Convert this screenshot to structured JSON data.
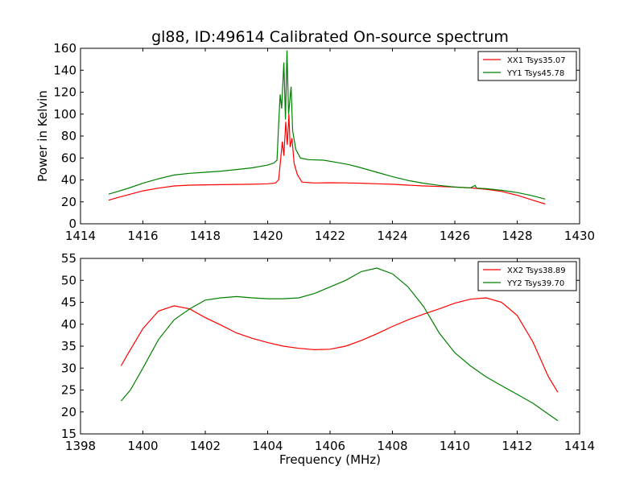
{
  "chart_data": [
    {
      "type": "line",
      "title": "gl88, ID:49614 Calibrated On-source spectrum",
      "xlabel": "",
      "ylabel": "Power in Kelvin",
      "xlim": [
        1414,
        1430
      ],
      "ylim": [
        0,
        160
      ],
      "xticks": [
        1414,
        1416,
        1418,
        1420,
        1422,
        1424,
        1426,
        1428,
        1430
      ],
      "yticks": [
        0,
        20,
        40,
        60,
        80,
        100,
        120,
        140,
        160
      ],
      "legend_position": "top-right",
      "series": [
        {
          "name": "XX1 Tsys35.07",
          "color": "#ff0000",
          "points": [
            [
              1414.9,
              21.5
            ],
            [
              1415.2,
              24
            ],
            [
              1415.6,
              27
            ],
            [
              1416.0,
              30
            ],
            [
              1416.5,
              32.5
            ],
            [
              1417.0,
              34.5
            ],
            [
              1417.5,
              35.2
            ],
            [
              1418.0,
              35.5
            ],
            [
              1418.5,
              35.7
            ],
            [
              1419.0,
              35.9
            ],
            [
              1419.5,
              36.0
            ],
            [
              1420.0,
              36.5
            ],
            [
              1420.25,
              37.2
            ],
            [
              1420.35,
              40
            ],
            [
              1420.42,
              60
            ],
            [
              1420.47,
              75
            ],
            [
              1420.52,
              62
            ],
            [
              1420.58,
              93
            ],
            [
              1420.63,
              72
            ],
            [
              1420.68,
              100
            ],
            [
              1420.72,
              70
            ],
            [
              1420.78,
              78
            ],
            [
              1420.85,
              55
            ],
            [
              1420.95,
              45
            ],
            [
              1421.1,
              38
            ],
            [
              1421.5,
              37.2
            ],
            [
              1422.0,
              37.4
            ],
            [
              1422.5,
              37.3
            ],
            [
              1423.0,
              37
            ],
            [
              1423.5,
              36.5
            ],
            [
              1424.0,
              36
            ],
            [
              1424.5,
              35.2
            ],
            [
              1425.0,
              34.5
            ],
            [
              1425.5,
              34
            ],
            [
              1426.0,
              33.5
            ],
            [
              1426.5,
              32.7
            ],
            [
              1427.0,
              31.5
            ],
            [
              1427.5,
              29.5
            ],
            [
              1428.0,
              26
            ],
            [
              1428.5,
              21.5
            ],
            [
              1428.9,
              18
            ]
          ]
        },
        {
          "name": "YY1 Tsys45.78",
          "color": "#008000",
          "points": [
            [
              1414.9,
              27
            ],
            [
              1415.2,
              29.5
            ],
            [
              1415.6,
              33
            ],
            [
              1416.0,
              37
            ],
            [
              1416.5,
              41
            ],
            [
              1417.0,
              44.5
            ],
            [
              1417.5,
              46
            ],
            [
              1418.0,
              47
            ],
            [
              1418.5,
              48
            ],
            [
              1419.0,
              49.5
            ],
            [
              1419.5,
              51
            ],
            [
              1420.0,
              53.5
            ],
            [
              1420.2,
              55.5
            ],
            [
              1420.3,
              58
            ],
            [
              1420.35,
              90
            ],
            [
              1420.4,
              118
            ],
            [
              1420.45,
              105
            ],
            [
              1420.52,
              147
            ],
            [
              1420.57,
              95
            ],
            [
              1420.62,
              158
            ],
            [
              1420.67,
              100
            ],
            [
              1420.75,
              125
            ],
            [
              1420.8,
              85
            ],
            [
              1420.9,
              68
            ],
            [
              1421.05,
              60
            ],
            [
              1421.3,
              58.5
            ],
            [
              1421.8,
              58
            ],
            [
              1422.2,
              56
            ],
            [
              1422.6,
              54
            ],
            [
              1423.0,
              51
            ],
            [
              1423.5,
              47
            ],
            [
              1424.0,
              43
            ],
            [
              1424.5,
              39.5
            ],
            [
              1425.0,
              37
            ],
            [
              1425.5,
              35
            ],
            [
              1426.0,
              33.5
            ],
            [
              1426.5,
              32.7
            ],
            [
              1426.65,
              35
            ],
            [
              1426.7,
              32.5
            ],
            [
              1427.0,
              32
            ],
            [
              1427.5,
              30.5
            ],
            [
              1428.0,
              28.5
            ],
            [
              1428.5,
              25.5
            ],
            [
              1428.9,
              22.5
            ]
          ]
        }
      ]
    },
    {
      "type": "line",
      "title": "",
      "xlabel": "Frequency (MHz)",
      "ylabel": "",
      "xlim": [
        1398,
        1414
      ],
      "ylim": [
        15,
        55
      ],
      "xticks": [
        1398,
        1400,
        1402,
        1404,
        1406,
        1408,
        1410,
        1412,
        1414
      ],
      "yticks": [
        15,
        20,
        25,
        30,
        35,
        40,
        45,
        50,
        55
      ],
      "legend_position": "top-right",
      "series": [
        {
          "name": "XX2 Tsys38.89",
          "color": "#ff0000",
          "points": [
            [
              1399.3,
              30.5
            ],
            [
              1399.5,
              33
            ],
            [
              1400.0,
              39
            ],
            [
              1400.5,
              43
            ],
            [
              1401.0,
              44.2
            ],
            [
              1401.5,
              43.5
            ],
            [
              1402.0,
              41.5
            ],
            [
              1402.5,
              39.8
            ],
            [
              1403.0,
              38
            ],
            [
              1403.5,
              36.8
            ],
            [
              1404.0,
              35.8
            ],
            [
              1404.5,
              35
            ],
            [
              1405.0,
              34.5
            ],
            [
              1405.5,
              34.2
            ],
            [
              1406.0,
              34.3
            ],
            [
              1406.5,
              35
            ],
            [
              1407.0,
              36.3
            ],
            [
              1407.5,
              37.8
            ],
            [
              1408.0,
              39.5
            ],
            [
              1408.5,
              41
            ],
            [
              1409.0,
              42.3
            ],
            [
              1409.5,
              43.5
            ],
            [
              1410.0,
              44.8
            ],
            [
              1410.5,
              45.7
            ],
            [
              1411.0,
              46
            ],
            [
              1411.5,
              45
            ],
            [
              1412.0,
              42
            ],
            [
              1412.5,
              36
            ],
            [
              1413.0,
              28
            ],
            [
              1413.3,
              24.5
            ]
          ]
        },
        {
          "name": "YY2 Tsys39.70",
          "color": "#008000",
          "points": [
            [
              1399.3,
              22.5
            ],
            [
              1399.6,
              25
            ],
            [
              1400.0,
              30
            ],
            [
              1400.5,
              36.5
            ],
            [
              1401.0,
              41
            ],
            [
              1401.5,
              43.5
            ],
            [
              1402.0,
              45.5
            ],
            [
              1402.5,
              46
            ],
            [
              1403.0,
              46.3
            ],
            [
              1403.5,
              46
            ],
            [
              1404.0,
              45.8
            ],
            [
              1404.5,
              45.8
            ],
            [
              1405.0,
              46
            ],
            [
              1405.5,
              47
            ],
            [
              1406.0,
              48.5
            ],
            [
              1406.5,
              50
            ],
            [
              1407.0,
              52
            ],
            [
              1407.5,
              52.8
            ],
            [
              1408.0,
              51.5
            ],
            [
              1408.5,
              48.5
            ],
            [
              1409.0,
              44
            ],
            [
              1409.5,
              38
            ],
            [
              1410.0,
              33.5
            ],
            [
              1410.5,
              30.5
            ],
            [
              1411.0,
              28
            ],
            [
              1411.5,
              26
            ],
            [
              1412.0,
              24
            ],
            [
              1412.5,
              22
            ],
            [
              1413.0,
              19.5
            ],
            [
              1413.3,
              18
            ]
          ]
        }
      ]
    }
  ]
}
